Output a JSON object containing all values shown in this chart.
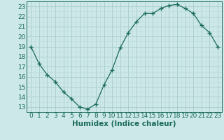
{
  "x": [
    0,
    1,
    2,
    3,
    4,
    5,
    6,
    7,
    8,
    9,
    10,
    11,
    12,
    13,
    14,
    15,
    16,
    17,
    18,
    19,
    20,
    21,
    22,
    23
  ],
  "y": [
    19,
    17.3,
    16.2,
    15.5,
    14.5,
    13.8,
    13.0,
    12.8,
    13.3,
    15.2,
    16.7,
    18.9,
    20.4,
    21.5,
    22.3,
    22.3,
    22.8,
    23.1,
    23.2,
    22.8,
    22.3,
    21.1,
    20.4,
    19.0
  ],
  "line_color": "#1a6b5a",
  "marker": "+",
  "marker_size": 4,
  "marker_lw": 1.0,
  "bg_color": "#cce8e8",
  "grid_major_color": "#aacccc",
  "grid_minor_color": "#bdd8d8",
  "xlabel": "Humidex (Indice chaleur)",
  "ylim": [
    12.5,
    23.5
  ],
  "xlim": [
    -0.5,
    23.5
  ],
  "yticks": [
    13,
    14,
    15,
    16,
    17,
    18,
    19,
    20,
    21,
    22,
    23
  ],
  "xticks": [
    0,
    1,
    2,
    3,
    4,
    5,
    6,
    7,
    8,
    9,
    10,
    11,
    12,
    13,
    14,
    15,
    16,
    17,
    18,
    19,
    20,
    21,
    22,
    23
  ],
  "tick_label_fontsize": 6.5,
  "xlabel_fontsize": 7.5
}
